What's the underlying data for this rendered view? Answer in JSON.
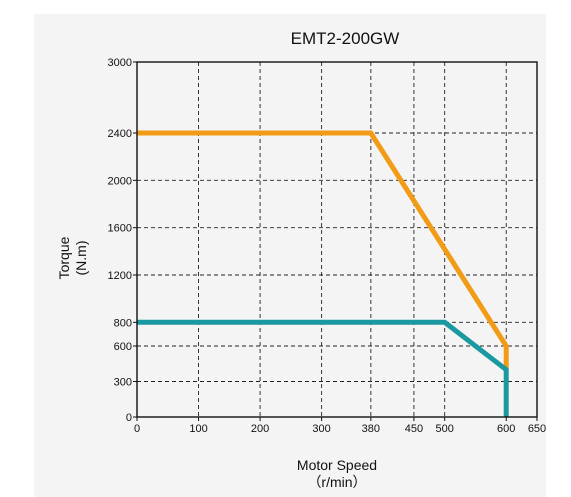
{
  "chart_data": {
    "type": "line",
    "title": "EMT2-200GW",
    "xlabel_line1": "Motor Speed",
    "xlabel_line2": "（r/min）",
    "ylabel_line1": "Torque",
    "ylabel_line2": "(N.m)",
    "xlim": [
      0,
      650
    ],
    "ylim": [
      0,
      3000
    ],
    "xticks": [
      0,
      100,
      200,
      300,
      380,
      450,
      500,
      600,
      650
    ],
    "yticks": [
      0,
      300,
      600,
      800,
      1200,
      1600,
      2000,
      2400,
      3000
    ],
    "grid": true,
    "series": [
      {
        "color": "#f29b17",
        "points": [
          [
            0,
            2400
          ],
          [
            380,
            2400
          ],
          [
            600,
            600
          ],
          [
            600,
            400
          ]
        ]
      },
      {
        "color": "#1a9aa0",
        "points": [
          [
            0,
            800
          ],
          [
            500,
            800
          ],
          [
            600,
            400
          ],
          [
            600,
            0
          ]
        ]
      }
    ]
  }
}
